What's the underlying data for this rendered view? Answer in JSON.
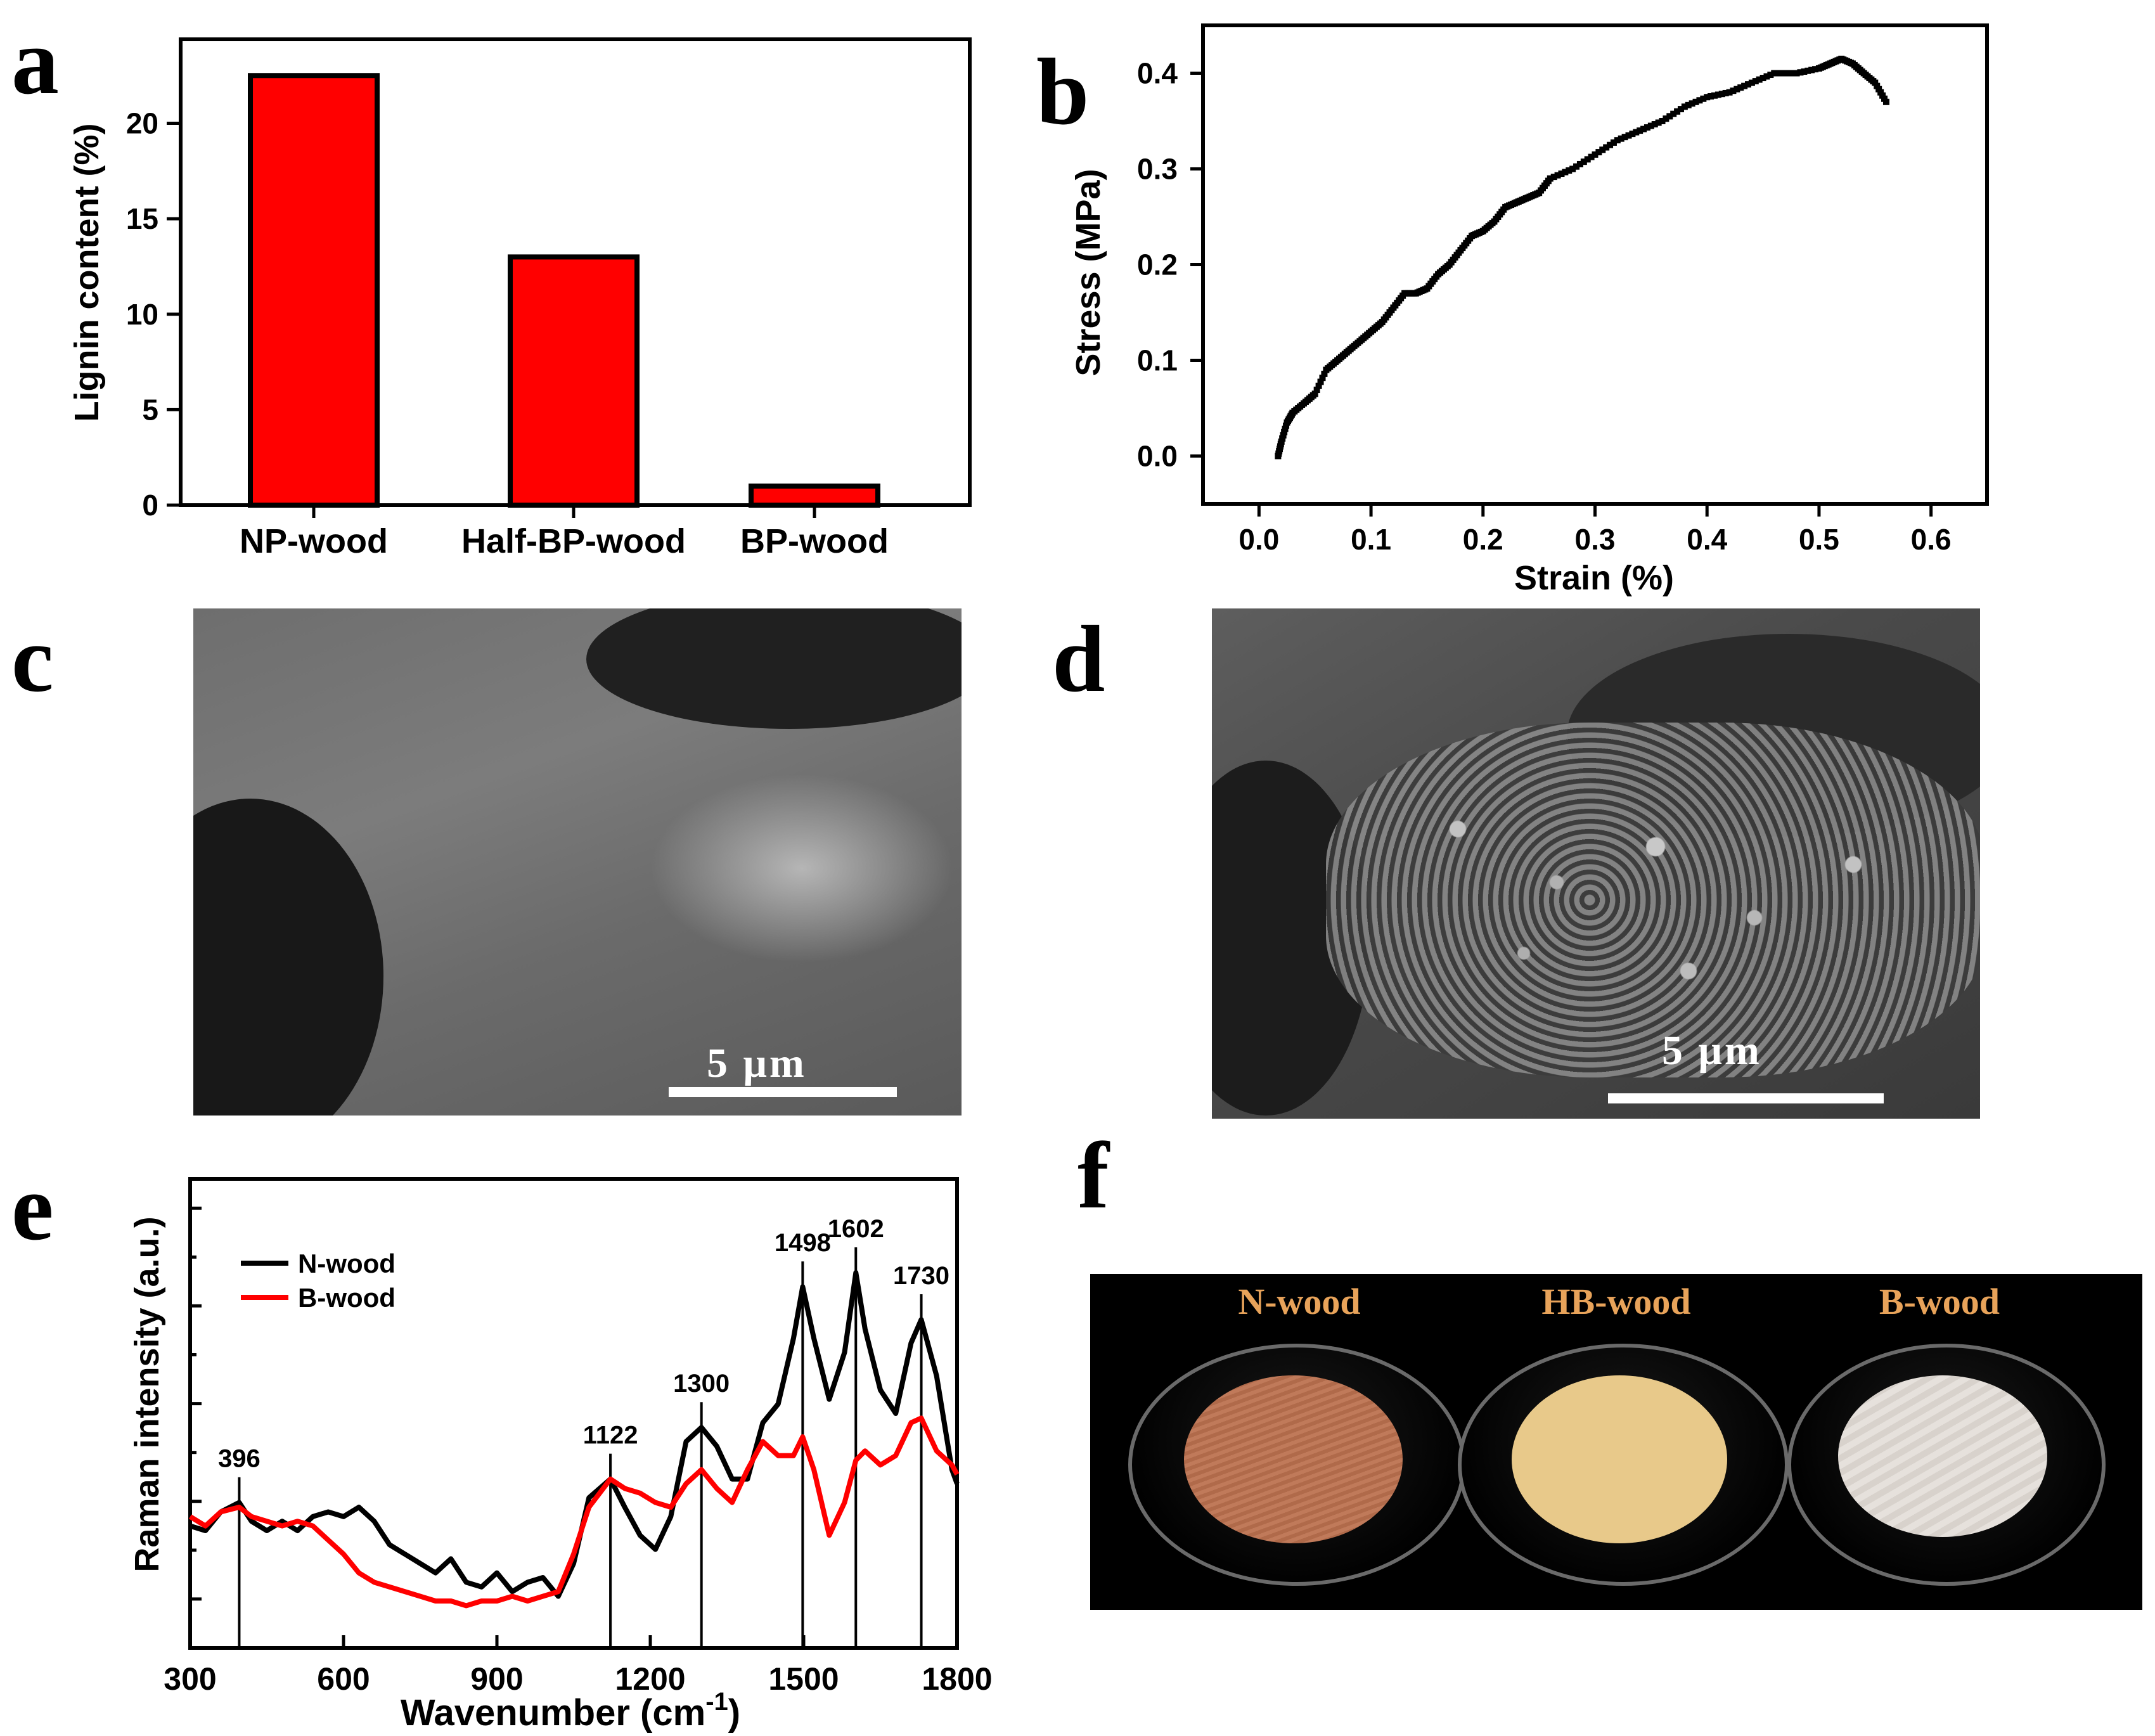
{
  "panels": {
    "a": "a",
    "b": "b",
    "c": "c",
    "d": "d",
    "e": "e",
    "f": "f"
  },
  "chart_data": [
    {
      "panel": "a",
      "type": "bar",
      "categories": [
        "NP-wood",
        "Half-BP-wood",
        "BP-wood"
      ],
      "values": [
        22.5,
        13.0,
        1.0
      ],
      "title": "",
      "xlabel": "",
      "ylabel": "Lignin content (%)",
      "ylim": [
        0,
        24.4
      ],
      "yticks": [
        0,
        5,
        10,
        15,
        20
      ],
      "bar_color": "#ff0000",
      "bar_edge": "#000000"
    },
    {
      "panel": "b",
      "type": "scatter",
      "title": "",
      "xlabel": "Strain (%)",
      "ylabel": "Stress (MPa)",
      "xlim": [
        -0.05,
        0.65
      ],
      "ylim": [
        -0.05,
        0.45
      ],
      "xticks": [
        "0.0",
        "0.1",
        "0.2",
        "0.3",
        "0.4",
        "0.5",
        "0.6"
      ],
      "yticks": [
        "0.0",
        "0.1",
        "0.2",
        "0.3",
        "0.4"
      ],
      "series": [
        {
          "name": "stress-strain",
          "color": "#000000",
          "x": [
            0.017,
            0.02,
            0.025,
            0.03,
            0.04,
            0.05,
            0.06,
            0.07,
            0.08,
            0.09,
            0.1,
            0.11,
            0.12,
            0.13,
            0.14,
            0.15,
            0.16,
            0.17,
            0.18,
            0.19,
            0.2,
            0.21,
            0.22,
            0.23,
            0.24,
            0.25,
            0.26,
            0.28,
            0.3,
            0.32,
            0.34,
            0.36,
            0.38,
            0.4,
            0.42,
            0.44,
            0.46,
            0.48,
            0.5,
            0.51,
            0.52,
            0.53,
            0.54,
            0.55,
            0.56
          ],
          "y": [
            0.0,
            0.015,
            0.035,
            0.045,
            0.055,
            0.065,
            0.09,
            0.1,
            0.11,
            0.12,
            0.13,
            0.14,
            0.155,
            0.17,
            0.17,
            0.175,
            0.19,
            0.2,
            0.215,
            0.23,
            0.235,
            0.245,
            0.26,
            0.265,
            0.27,
            0.275,
            0.29,
            0.3,
            0.315,
            0.33,
            0.34,
            0.35,
            0.365,
            0.375,
            0.38,
            0.39,
            0.4,
            0.4,
            0.405,
            0.41,
            0.415,
            0.41,
            0.4,
            0.39,
            0.37
          ]
        }
      ]
    },
    {
      "panel": "e",
      "type": "line",
      "title": "",
      "xlabel": "Wavenumber (cm",
      "xlabel_sup": "-1",
      "xlabel_end": ")",
      "ylabel": "Raman intensity (a.u.)",
      "xlim": [
        300,
        1800
      ],
      "xticks": [
        "300",
        "600",
        "900",
        "1200",
        "1500",
        "1800"
      ],
      "ylim": [
        0,
        10
      ],
      "peaks": [
        396,
        1122,
        1300,
        1498,
        1602,
        1730
      ],
      "peak_labels": [
        "396",
        "1122",
        "1300",
        "1498",
        "1602",
        "1730"
      ],
      "series": [
        {
          "name": "N-wood",
          "color": "#000000",
          "x": [
            300,
            330,
            360,
            396,
            420,
            450,
            480,
            510,
            540,
            570,
            600,
            630,
            660,
            690,
            720,
            750,
            780,
            810,
            840,
            870,
            900,
            930,
            960,
            990,
            1020,
            1050,
            1080,
            1122,
            1150,
            1180,
            1210,
            1240,
            1270,
            1300,
            1330,
            1360,
            1390,
            1420,
            1450,
            1480,
            1498,
            1520,
            1550,
            1580,
            1602,
            1620,
            1650,
            1680,
            1710,
            1730,
            1760,
            1790,
            1800
          ],
          "y": [
            2.6,
            2.5,
            2.9,
            3.1,
            2.7,
            2.5,
            2.7,
            2.5,
            2.8,
            2.9,
            2.8,
            3.0,
            2.7,
            2.2,
            2.0,
            1.8,
            1.6,
            1.9,
            1.4,
            1.3,
            1.6,
            1.2,
            1.4,
            1.5,
            1.1,
            1.8,
            3.2,
            3.6,
            3.0,
            2.4,
            2.1,
            2.8,
            4.4,
            4.7,
            4.3,
            3.6,
            3.6,
            4.8,
            5.2,
            6.6,
            7.7,
            6.6,
            5.3,
            6.3,
            8.0,
            6.8,
            5.5,
            5.0,
            6.5,
            7.0,
            5.8,
            3.8,
            3.5
          ]
        },
        {
          "name": "B-wood",
          "color": "#ff0000",
          "x": [
            300,
            330,
            360,
            396,
            420,
            450,
            480,
            510,
            540,
            570,
            600,
            630,
            660,
            690,
            720,
            750,
            780,
            810,
            840,
            870,
            900,
            930,
            960,
            990,
            1020,
            1050,
            1080,
            1122,
            1150,
            1180,
            1210,
            1240,
            1270,
            1300,
            1330,
            1360,
            1390,
            1420,
            1450,
            1480,
            1498,
            1520,
            1550,
            1580,
            1602,
            1620,
            1650,
            1680,
            1710,
            1730,
            1760,
            1790,
            1800
          ],
          "y": [
            2.8,
            2.6,
            2.9,
            3.0,
            2.8,
            2.7,
            2.6,
            2.7,
            2.6,
            2.3,
            2.0,
            1.6,
            1.4,
            1.3,
            1.2,
            1.1,
            1.0,
            1.0,
            0.9,
            1.0,
            1.0,
            1.1,
            1.0,
            1.1,
            1.2,
            2.0,
            3.0,
            3.6,
            3.4,
            3.3,
            3.1,
            3.0,
            3.5,
            3.8,
            3.4,
            3.1,
            3.8,
            4.4,
            4.1,
            4.1,
            4.5,
            3.8,
            2.4,
            3.1,
            4.0,
            4.2,
            3.9,
            4.1,
            4.8,
            4.9,
            4.2,
            3.9,
            3.7
          ]
        }
      ],
      "legend": [
        "N-wood",
        "B-wood"
      ],
      "legend_position": "top-left"
    }
  ],
  "sem": {
    "c_scale": "5 μm",
    "d_scale": "5 μm"
  },
  "photo": {
    "labels": [
      "N-wood",
      "HB-wood",
      "B-wood"
    ],
    "colors": [
      "#c07a5a",
      "#e8c98a",
      "#e6e1dc"
    ]
  }
}
